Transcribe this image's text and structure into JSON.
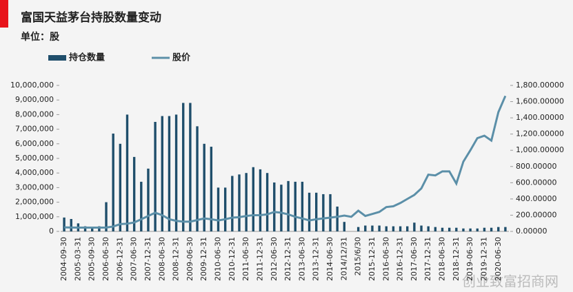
{
  "chart_data": {
    "type": "bar-line",
    "title": "富国天益茅台持股数量变动",
    "subtitle": "单位：股",
    "watermark": "创业致富招商网",
    "categories": [
      "2004-09-30",
      null,
      "2005-03-31",
      null,
      "2005-09-30",
      null,
      "2006-06-30",
      null,
      "2006-12-31",
      null,
      "2007-06-30",
      null,
      "2007-12-31",
      null,
      "2008-06-30",
      null,
      "2008-12-31",
      null,
      "2009-06-30",
      null,
      "2009-12-31",
      null,
      "2010-06-30",
      null,
      "2010-12-31",
      null,
      "2011-06-30",
      null,
      "2011-12-31",
      null,
      "2012-06-30",
      null,
      "2012-12-31",
      null,
      "2013-06-30",
      null,
      "2013-12-31",
      null,
      "2014-06-30",
      null,
      "2014/12/31",
      null,
      "2015/6/30",
      null,
      "2015-12-31",
      null,
      "2016-06-30",
      null,
      "2016-12-31",
      null,
      "2017-06-30",
      null,
      "2017-12-31",
      null,
      "2018-06-30",
      null,
      "2018-12-31",
      null,
      "2019-06-30",
      null,
      "2019-12-31",
      null,
      "2020-06-30",
      null
    ],
    "series": [
      {
        "name": "持仓数量",
        "color": "#1f4e6b",
        "kind": "bar",
        "values": [
          950000,
          850000,
          550000,
          350000,
          250000,
          350000,
          2000000,
          6700000,
          6000000,
          8000000,
          5100000,
          3400000,
          4300000,
          7500000,
          7900000,
          7900000,
          8000000,
          8800000,
          8800000,
          7200000,
          6000000,
          5800000,
          3000000,
          3000000,
          3800000,
          3900000,
          4000000,
          4400000,
          4250000,
          4000000,
          3350000,
          3200000,
          3450000,
          3400000,
          3400000,
          2650000,
          2650000,
          2550000,
          2550000,
          1700000,
          650000,
          null,
          300000,
          400000,
          400000,
          400000,
          350000,
          350000,
          350000,
          350000,
          600000,
          400000,
          350000,
          300000,
          250000,
          250000,
          250000,
          200000,
          200000,
          200000,
          250000,
          250000,
          300000,
          300000
        ]
      },
      {
        "name": "股价",
        "color": "#5b8fa8",
        "kind": "line",
        "axis": "y2",
        "values": [
          50,
          48,
          47,
          47,
          47,
          47,
          48,
          60,
          90,
          95,
          110,
          150,
          190,
          230,
          200,
          150,
          130,
          120,
          120,
          140,
          160,
          150,
          135,
          150,
          170,
          175,
          190,
          200,
          200,
          210,
          240,
          230,
          210,
          180,
          160,
          135,
          150,
          160,
          170,
          180,
          195,
          180,
          255,
          190,
          215,
          240,
          300,
          310,
          350,
          400,
          450,
          530,
          700,
          690,
          740,
          740,
          590,
          860,
          1000,
          1150,
          1180,
          1120,
          1470,
          1670
        ]
      }
    ],
    "ylim": [
      0,
      10000000
    ],
    "yticks": [
      0,
      {
        "value": 1000000,
        "label": "1,000,000"
      },
      {
        "value": 2000000,
        "label": "2,000,000"
      },
      {
        "value": 3000000,
        "label": "3,000,000"
      },
      {
        "value": 4000000,
        "label": "4,000,000"
      },
      {
        "value": 5000000,
        "label": "5,000,000"
      },
      {
        "value": 6000000,
        "label": "6,000,000"
      },
      {
        "value": 7000000,
        "label": "7,000,000"
      },
      {
        "value": 8000000,
        "label": "8,000,000"
      },
      {
        "value": 9000000,
        "label": "9,000,000"
      },
      {
        "value": 10000000,
        "label": "10,000,000"
      }
    ],
    "y2lim": [
      0,
      1800
    ],
    "y2ticks": [
      {
        "value": 0,
        "label": "0.00000"
      },
      {
        "value": 200,
        "label": "200.00000"
      },
      {
        "value": 400,
        "label": "400.00000"
      },
      {
        "value": 600,
        "label": "600.00000"
      },
      {
        "value": 800,
        "label": "800.00000"
      },
      {
        "value": 1000,
        "label": "1,000.00000"
      },
      {
        "value": 1200,
        "label": "1,200.00000"
      },
      {
        "value": 1400,
        "label": "1,400.00000"
      },
      {
        "value": 1600,
        "label": "1,600.00000"
      },
      {
        "value": 1800,
        "label": "1,800.00000"
      }
    ],
    "grid": false
  }
}
